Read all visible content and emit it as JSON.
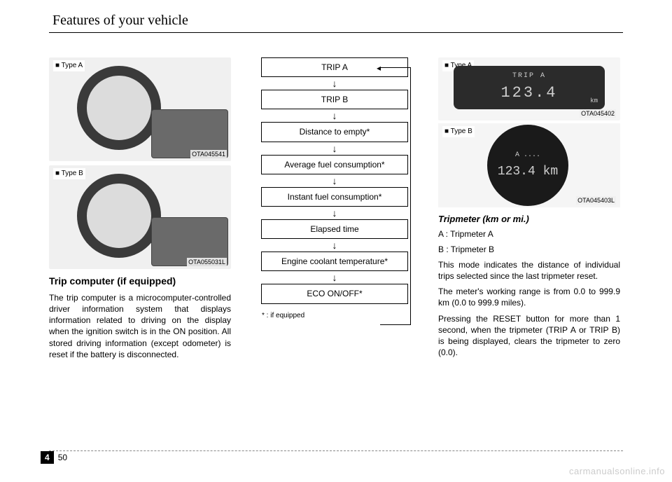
{
  "header": {
    "title": "Features of your vehicle"
  },
  "left_col": {
    "fig_a": {
      "type_label": "■ Type A",
      "code": "OTA045541"
    },
    "fig_b": {
      "type_label": "■ Type B",
      "code": "OTA055031L"
    },
    "subhead": "Trip computer (if equipped)",
    "body": "The trip computer is a microcomputer-controlled driver information system that displays information related to driving on the display when the ignition switch is in the ON position. All stored driving information (except odometer) is reset if the battery is disconnected."
  },
  "mid_col": {
    "flow": [
      "TRIP A",
      "TRIP B",
      "Distance to empty*",
      "Average fuel consumption*",
      "Instant fuel consumption*",
      "Elapsed time",
      "Engine coolant temperature*",
      "ECO ON/OFF*"
    ],
    "note": "* : if equipped"
  },
  "right_col": {
    "disp_a": {
      "type_label": "■ Type A",
      "trip_label": "TRIP A",
      "value": "123.4",
      "unit": "km",
      "code": "OTA045402"
    },
    "disp_b": {
      "type_label": "■ Type B",
      "top": "A ....",
      "value": "123.4 km",
      "code": "OTA045403L"
    },
    "subhead": "Tripmeter (km or mi.)",
    "line_a": "A : Tripmeter A",
    "line_b": "B : Tripmeter B",
    "p1": "This mode indicates the distance of individual trips selected since the last tripmeter reset.",
    "p2": "The meter's working range is from 0.0 to 999.9 km (0.0 to 999.9 miles).",
    "p3": "Pressing the RESET button for more than 1 second, when the tripmeter (TRIP A or TRIP B) is being displayed, clears the tripmeter to zero (0.0)."
  },
  "footer": {
    "chapter": "4",
    "page": "50",
    "watermark": "carmanualsonline.info"
  }
}
